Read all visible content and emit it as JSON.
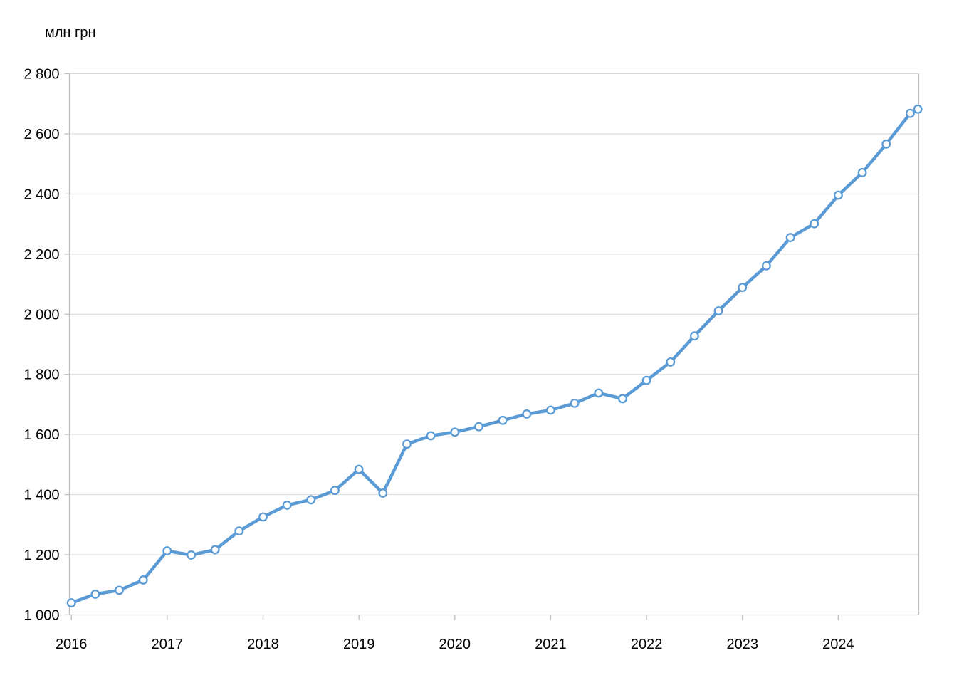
{
  "chart_data": {
    "type": "line",
    "title": "млн грн",
    "legend": "none",
    "grid": "horizontal",
    "x_tick_labels": [
      "2016",
      "2017",
      "2018",
      "2019",
      "2020",
      "2021",
      "2022",
      "2023",
      "2024"
    ],
    "x_tick_values": [
      2016,
      2017,
      2018,
      2019,
      2020,
      2021,
      2022,
      2023,
      2024
    ],
    "xlim": [
      2015.98,
      2024.84
    ],
    "ylim": [
      1000,
      2800
    ],
    "y_tick_values": [
      1000,
      1200,
      1400,
      1600,
      1800,
      2000,
      2200,
      2400,
      2600,
      2800
    ],
    "y_tick_labels": [
      "1 000",
      "1 200",
      "1 400",
      "1 600",
      "1 800",
      "2 000",
      "2 200",
      "2 400",
      "2 600",
      "2 800"
    ],
    "x": [
      2016.0,
      2016.25,
      2016.5,
      2016.75,
      2017.0,
      2017.25,
      2017.5,
      2017.75,
      2018.0,
      2018.25,
      2018.5,
      2018.75,
      2019.0,
      2019.25,
      2019.5,
      2019.75,
      2020.0,
      2020.25,
      2020.5,
      2020.75,
      2021.0,
      2021.25,
      2021.5,
      2021.75,
      2022.0,
      2022.25,
      2022.5,
      2022.75,
      2023.0,
      2023.25,
      2023.5,
      2023.75,
      2024.0,
      2024.25,
      2024.5,
      2024.75,
      2024.83
    ],
    "values": [
      1040,
      1069,
      1082,
      1116,
      1213,
      1199,
      1217,
      1279,
      1326,
      1365,
      1383,
      1414,
      1484,
      1405,
      1568,
      1596,
      1608,
      1626,
      1647,
      1668,
      1681,
      1704,
      1738,
      1719,
      1780,
      1841,
      1928,
      2011,
      2089,
      2161,
      2255,
      2301,
      2396,
      2471,
      2566,
      2668,
      2682
    ],
    "colors": {
      "line": "#5B9BD5",
      "marker_fill": "#FFFFFF",
      "grid": "#D9D9D9",
      "axis": "#BFBFBF",
      "text": "#000000"
    }
  }
}
